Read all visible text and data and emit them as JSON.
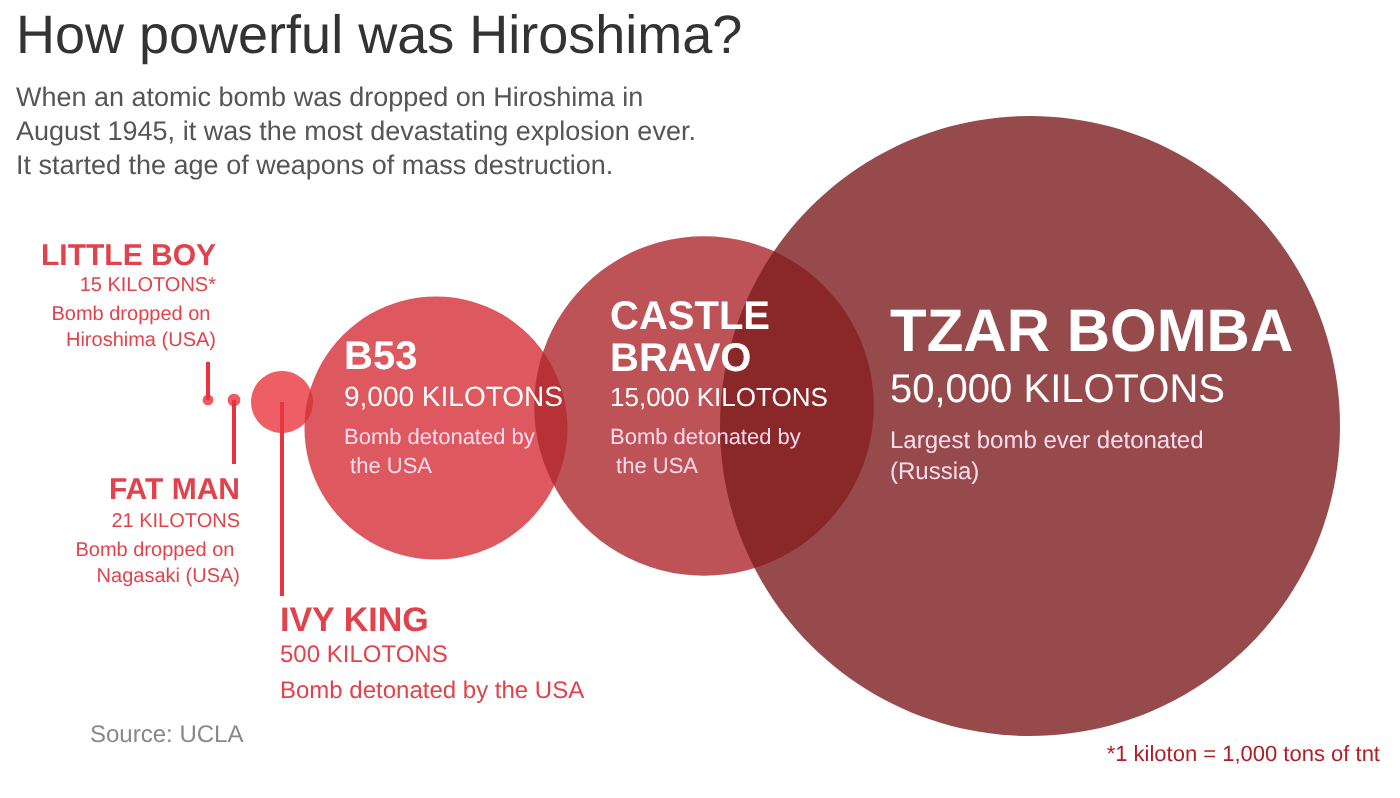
{
  "chart_data": {
    "type": "other",
    "title": "How powerful was Hiroshima?",
    "subtitle": "When an atomic bomb was dropped on Hiroshima in August 1945, it was the most devastating explosion ever. It started the age of weapons of mass destruction.",
    "categories": [
      "LITTLE BOY",
      "FAT MAN",
      "IVY KING",
      "B53",
      "CASTLE BRAVO",
      "TZAR BOMBA"
    ],
    "values": [
      15,
      21,
      500,
      9000,
      15000,
      50000
    ],
    "value_labels": [
      "15 KILOTONS*",
      "21 KILOTONS",
      "500 KILOTONS",
      "9,000 KILOTONS",
      "15,000 KILOTONS",
      "50,000 KILOTONS"
    ],
    "colors": [
      "#e8323c",
      "#e8323c",
      "#e8363e",
      "#d42f37",
      "#ae282d",
      "#7d1d1e"
    ],
    "annotations": [
      "Bomb dropped on Hiroshima (USA)",
      "Bomb dropped on Nagasaki (USA)",
      "Bomb detonated by the USA",
      "Bomb detonated by the USA",
      "Bomb detonated by the USA",
      "Largest bomb ever detonated (Russia)",
      "Source: UCLA",
      "*1 kiloton = 1,000 tons of tnt"
    ]
  }
}
